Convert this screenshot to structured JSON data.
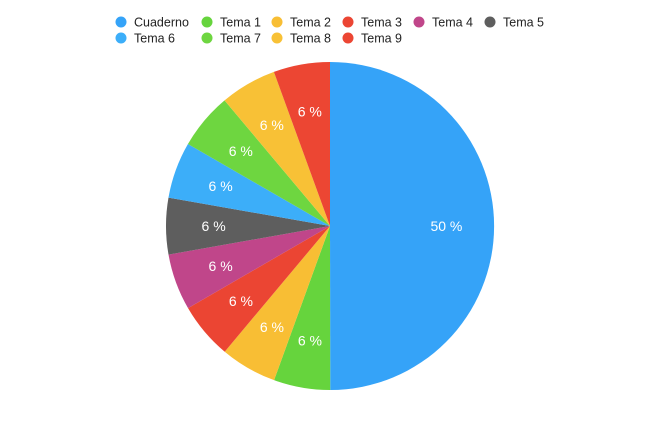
{
  "chart_data": {
    "type": "pie",
    "title": "",
    "legend_position": "top",
    "slices": [
      {
        "name": "Cuaderno",
        "value": 50,
        "label": "50 %",
        "color": "#35A3F8"
      },
      {
        "name": "Tema 1",
        "value": 5.56,
        "label": "6 %",
        "color": "#66D43D"
      },
      {
        "name": "Tema 2",
        "value": 5.56,
        "label": "6 %",
        "color": "#F8BE34"
      },
      {
        "name": "Tema 3",
        "value": 5.56,
        "label": "6 %",
        "color": "#EB4533"
      },
      {
        "name": "Tema 4",
        "value": 5.56,
        "label": "6 %",
        "color": "#C0468A"
      },
      {
        "name": "Tema 5",
        "value": 5.56,
        "label": "6 %",
        "color": "#5E5E5E"
      },
      {
        "name": "Tema 6",
        "value": 5.56,
        "label": "6 %",
        "color": "#3CAEF9"
      },
      {
        "name": "Tema 7",
        "value": 5.56,
        "label": "6 %",
        "color": "#6ED640"
      },
      {
        "name": "Tema 8",
        "value": 5.56,
        "label": "6 %",
        "color": "#F8C136"
      },
      {
        "name": "Tema 9",
        "value": 5.56,
        "label": "6 %",
        "color": "#EC4633"
      }
    ]
  }
}
